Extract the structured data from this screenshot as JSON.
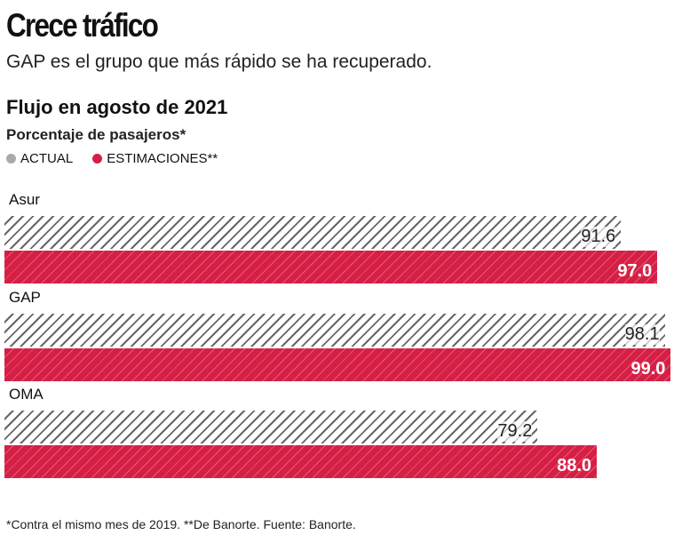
{
  "title": "Crece tráfico",
  "subtitle": "GAP es el grupo que más rápido se ha recuperado.",
  "chart_data": {
    "type": "bar",
    "title": "Flujo en agosto de 2021",
    "ylabel": "Porcentaje de pasajeros*",
    "categories": [
      "Asur",
      "GAP",
      "OMA"
    ],
    "series": [
      {
        "name": "ACTUAL",
        "color": "#aaaaaa",
        "values": [
          91.6,
          98.1,
          79.2
        ],
        "labels": [
          "91.6",
          "98.1",
          "79.2"
        ]
      },
      {
        "name": "ESTIMACIONES**",
        "color": "#d61f45",
        "values": [
          97.0,
          99.0,
          88.0
        ],
        "labels": [
          "97.0",
          "99.0",
          "88.0"
        ]
      }
    ],
    "xlim": [
      0,
      100
    ],
    "legend": "top-left"
  },
  "footnote": "*Contra el mismo mes de 2019. **De Banorte. Fuente: Banorte."
}
